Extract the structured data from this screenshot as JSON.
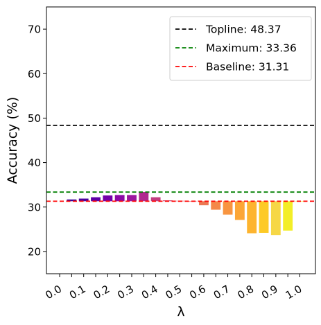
{
  "chart_data": {
    "type": "bar",
    "xlabel": "λ",
    "ylabel": "Accuracy (%)",
    "ylim": [
      15,
      75
    ],
    "yticks": [
      20,
      30,
      40,
      50,
      60,
      70
    ],
    "xtick_labels": [
      "0.0",
      "0.1",
      "0.2",
      "0.3",
      "0.4",
      "0.5",
      "0.6",
      "0.7",
      "0.8",
      "0.9",
      "1.0"
    ],
    "bar_base": 31.31,
    "x": [
      0.05,
      0.1,
      0.15,
      0.2,
      0.25,
      0.3,
      0.35,
      0.4,
      0.45,
      0.5,
      0.55,
      0.6,
      0.65,
      0.7,
      0.75,
      0.8,
      0.85,
      0.9,
      0.95,
      1.0
    ],
    "values": [
      31.7,
      31.9,
      32.2,
      32.6,
      32.7,
      32.7,
      33.4,
      32.2,
      31.5,
      31.4,
      31.2,
      30.4,
      29.4,
      28.3,
      27.1,
      24.1,
      24.2,
      23.7,
      24.7,
      31.31
    ],
    "bar_colors": [
      "#3a049a",
      "#4a02a0",
      "#5d01a6",
      "#7401a8",
      "#8b0aa5",
      "#9c179e",
      "#b02a8f",
      "#c33d80",
      "#cc4778",
      "#d8576b",
      "#e16462",
      "#ec7853",
      "#f48849",
      "#f89540",
      "#fca636",
      "#fdb42f",
      "#fdca26",
      "#f6d746",
      "#f3ee27",
      "#f0f921"
    ],
    "hlines": [
      {
        "name": "Topline: 48.37",
        "value": 48.37,
        "color": "#000000"
      },
      {
        "name": "Maximum: 33.36",
        "value": 33.36,
        "color": "#008000"
      },
      {
        "name": "Baseline: 31.31",
        "value": 31.31,
        "color": "#ff0000"
      }
    ],
    "legend_position": "top-right",
    "grid": false
  }
}
